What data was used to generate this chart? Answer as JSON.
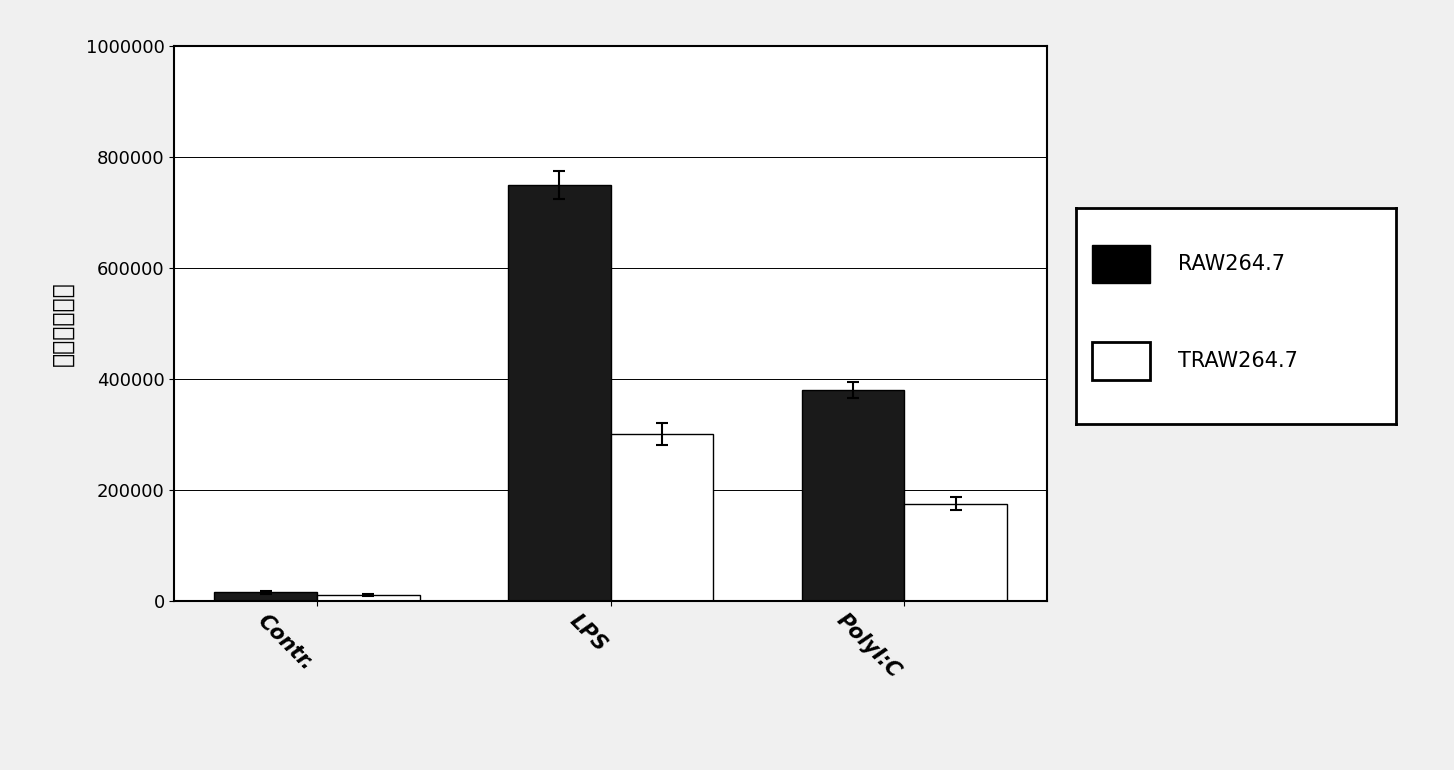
{
  "categories": [
    "Contr.",
    "LPS",
    "PolyI:C"
  ],
  "raw_values": [
    15000,
    750000,
    380000
  ],
  "traw_values": [
    10000,
    300000,
    175000
  ],
  "raw_errors": [
    3000,
    25000,
    15000
  ],
  "traw_errors": [
    2000,
    20000,
    12000
  ],
  "raw_color": "#1a1a1a",
  "traw_color": "#ffffff",
  "raw_label": "RAW264.7",
  "traw_label": "TRAW264.7",
  "ylabel": "化学发光强度",
  "ylim": [
    0,
    1000000
  ],
  "yticks": [
    0,
    200000,
    400000,
    600000,
    800000,
    1000000
  ],
  "bar_width": 0.35,
  "background_color": "#f0f0f0",
  "plot_bg_color": "#ffffff",
  "tick_fontsize": 13,
  "legend_fontsize": 15,
  "xlabel_rotation": -45
}
